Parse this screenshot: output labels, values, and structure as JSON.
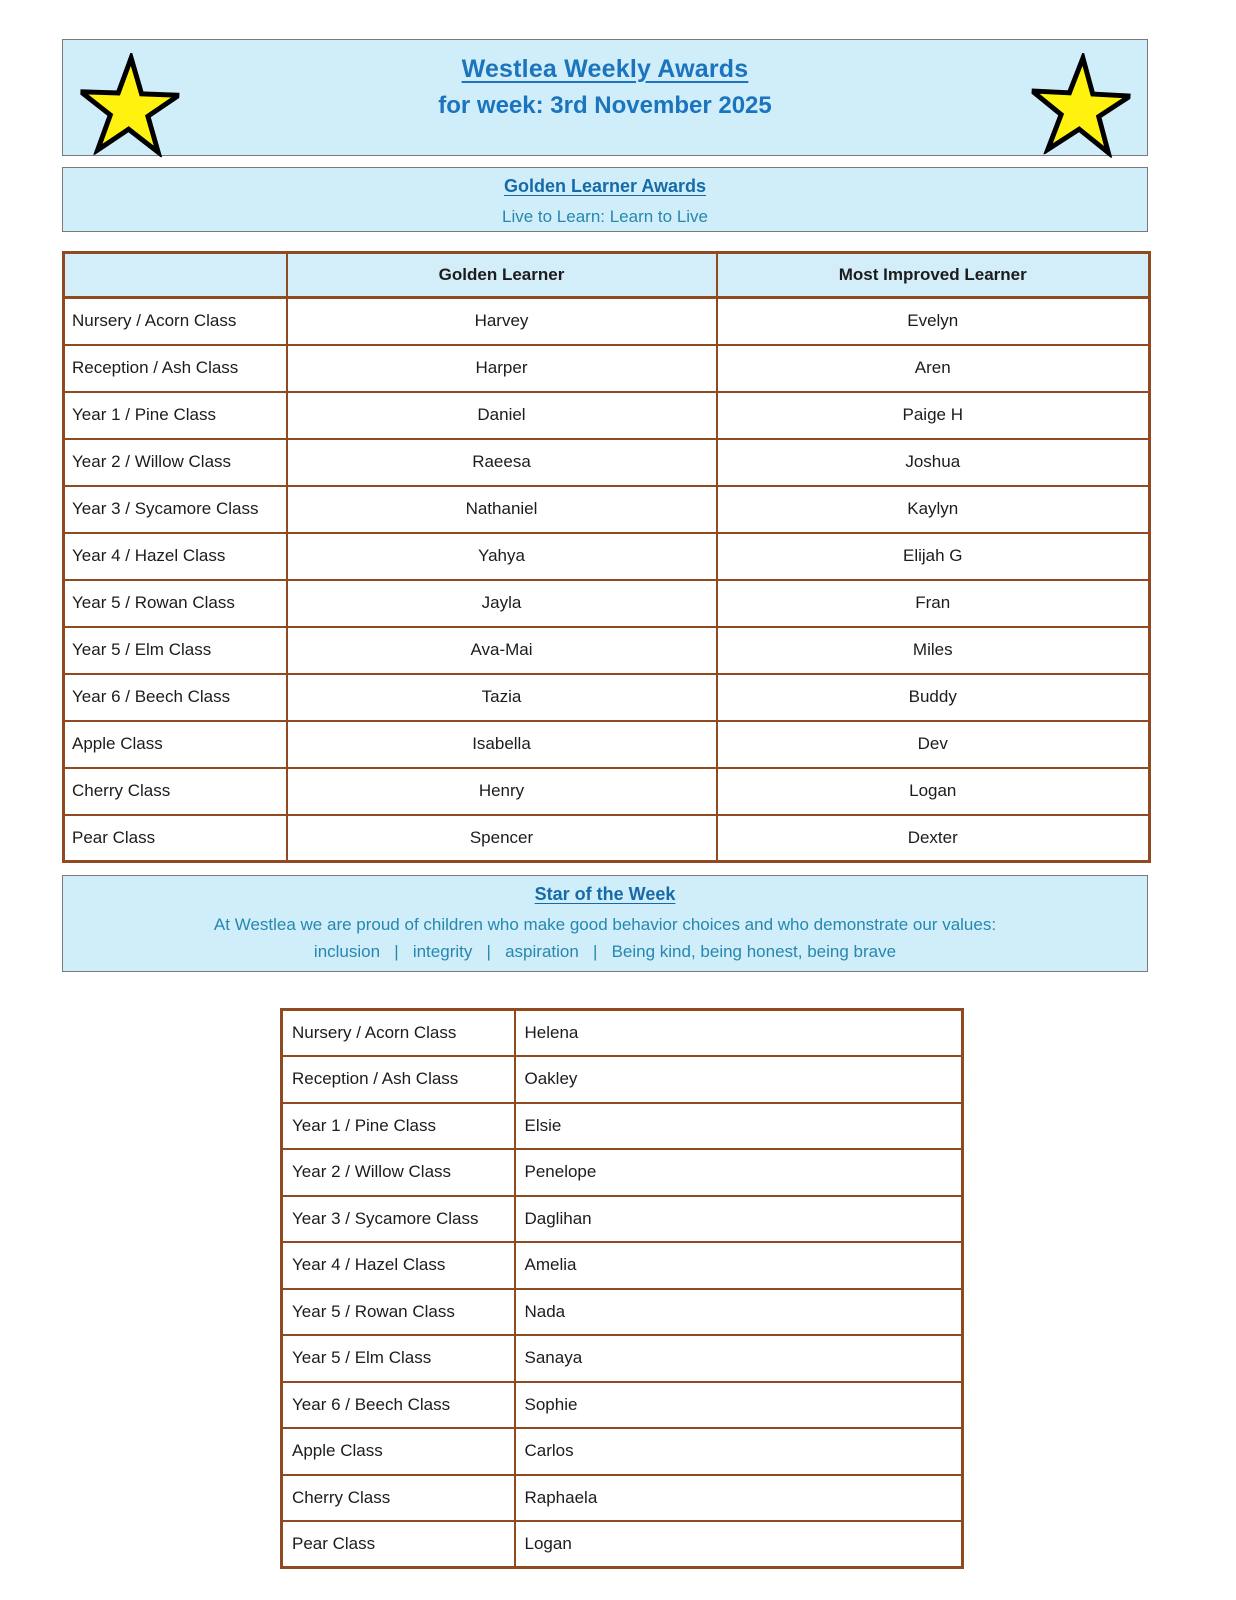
{
  "header": {
    "title_line1": "Westlea Weekly Awards",
    "title_line2": "for week: 3rd November 2025",
    "left_icon": "star-icon",
    "right_icon": "star-icon"
  },
  "golden_banner": {
    "heading": "Golden Learner Awards",
    "subheading": "Live to Learn: Learn to Live"
  },
  "awards_table": {
    "headers": [
      "",
      "Golden Learner",
      "Most Improved Learner"
    ],
    "rows": [
      {
        "class": "Nursery / Acorn Class",
        "golden": "Harvey",
        "improved": "Evelyn"
      },
      {
        "class": "Reception / Ash Class",
        "golden": "Harper",
        "improved": "Aren"
      },
      {
        "class": "Year 1 / Pine Class",
        "golden": "Daniel",
        "improved": "Paige H"
      },
      {
        "class": "Year 2 / Willow Class",
        "golden": "Raeesa",
        "improved": "Joshua"
      },
      {
        "class": "Year  3 / Sycamore Class",
        "golden": "Nathaniel",
        "improved": "Kaylyn"
      },
      {
        "class": "Year 4 / Hazel Class",
        "golden": "Yahya",
        "improved": "Elijah G"
      },
      {
        "class": "Year 5 / Rowan Class",
        "golden": "Jayla",
        "improved": "Fran"
      },
      {
        "class": "Year 5 / Elm Class",
        "golden": "Ava-Mai",
        "improved": "Miles"
      },
      {
        "class": "Year 6 / Beech Class",
        "golden": "Tazia",
        "improved": "Buddy"
      },
      {
        "class": "Apple Class",
        "golden": "Isabella",
        "improved": "Dev"
      },
      {
        "class": "Cherry Class",
        "golden": "Henry",
        "improved": "Logan"
      },
      {
        "class": "Pear Class",
        "golden": "Spencer",
        "improved": "Dexter"
      }
    ]
  },
  "star_banner": {
    "heading": "Star of the Week",
    "line1": "At Westlea we are proud of children who make good behavior choices and who demonstrate our values:",
    "values_line": "inclusion   |   integrity   |   aspiration   |   Being kind, being honest, being brave"
  },
  "star_table": {
    "rows": [
      {
        "class": "Nursery / Acorn Class",
        "student": "Helena"
      },
      {
        "class": "Reception / Ash Class",
        "student": "Oakley"
      },
      {
        "class": "Year 1 / Pine Class",
        "student": "Elsie"
      },
      {
        "class": "Year 2 / Willow Class",
        "student": "Penelope"
      },
      {
        "class": "Year  3 / Sycamore Class",
        "student": "Daglihan"
      },
      {
        "class": "Year 4 / Hazel Class",
        "student": "Amelia"
      },
      {
        "class": "Year 5 / Rowan Class",
        "student": "Nada"
      },
      {
        "class": "Year 5 / Elm Class",
        "student": "Sanaya"
      },
      {
        "class": "Year 6 / Beech Class",
        "student": "Sophie"
      },
      {
        "class": "Apple Class",
        "student": "Carlos"
      },
      {
        "class": "Cherry Class",
        "student": "Raphaela"
      },
      {
        "class": "Pear Class",
        "student": "Logan"
      }
    ]
  },
  "colors": {
    "banner_bg": "#cfeef9",
    "table_border": "#8f4a1f",
    "title_blue": "#1b74bd",
    "heading_blue": "#176aa8",
    "body_blue": "#2787b0",
    "star_yellow": "#fff20e"
  }
}
